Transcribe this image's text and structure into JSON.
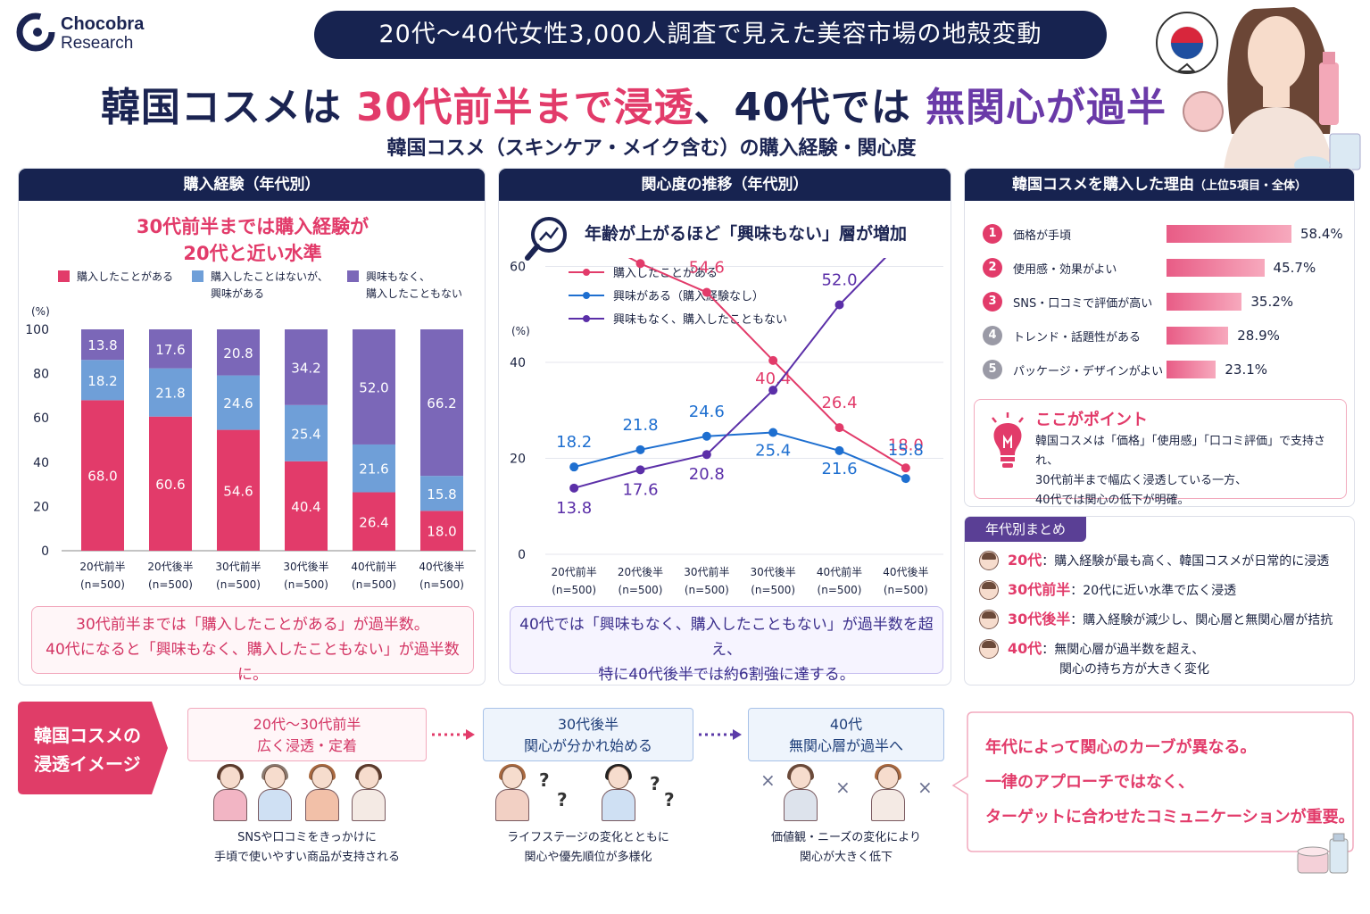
{
  "logo": {
    "name_line1": "Chocobra",
    "name_line2": "Research"
  },
  "banner": "20代〜40代女性3,000人調査で見えた美容市場の地殻変動",
  "headline": {
    "part1": "韓国コスメは ",
    "part2": "30代前半まで浸透",
    "part3": "、40代では ",
    "part4": "無関心が過半"
  },
  "subheadline": "韓国コスメ（スキンケア・メイク含む）の購入経験・関心度",
  "panel1": {
    "header": "購入経験（年代別）",
    "highlight_line1": "30代前半までは購入経験が",
    "highlight_line2": "20代と近い水準",
    "note_line1": "30代前半までは「購入したことがある」が過半数。",
    "note_line2": "40代になると「興味もなく、購入したこともない」が過半数に。"
  },
  "panel2": {
    "header": "関心度の推移（年代別）",
    "highlight": "年齢が上がるほど「興味もない」層が増加",
    "note_line1": "40代では「興味もなく、購入したこともない」が過半数を超え、",
    "note_line2": "特に40代後半では約6割強に達する。"
  },
  "panel3": {
    "header": "韓国コスメを購入した理由",
    "header_sub": "（上位5項目・全体）",
    "reasons": [
      {
        "rank": "1",
        "label": "価格が手頃",
        "value": 58.4,
        "display": "58.4%"
      },
      {
        "rank": "2",
        "label": "使用感・効果がよい",
        "value": 45.7,
        "display": "45.7%"
      },
      {
        "rank": "3",
        "label": "SNS・口コミで評価が高い",
        "value": 35.2,
        "display": "35.2%"
      },
      {
        "rank": "4",
        "label": "トレンド・話題性がある",
        "value": 28.9,
        "display": "28.9%"
      },
      {
        "rank": "5",
        "label": "パッケージ・デザインがよい",
        "value": 23.1,
        "display": "23.1%"
      }
    ],
    "point_title": "ここがポイント",
    "point_line1": "韓国コスメは「価格」「使用感」「口コミ評価」で支持され、",
    "point_line2": "30代前半まで幅広く浸透している一方、",
    "point_line3": "40代では関心の低下が明確。"
  },
  "summary": {
    "title": "年代別まとめ",
    "rows": [
      {
        "age": "20代",
        "text": "：購入経験が最も高く、韓国コスメが日常的に浸透",
        "text2": ""
      },
      {
        "age": "30代前半",
        "text": "：20代に近い水準で広く浸透",
        "text2": ""
      },
      {
        "age": "30代後半",
        "text": "：購入経験が減少し、関心層と無関心層が拮抗",
        "text2": ""
      },
      {
        "age": "40代",
        "text": "：無関心層が過半数を超え、",
        "text2": "関心の持ち方が大きく変化"
      }
    ]
  },
  "bottom": {
    "label_line1": "韓国コスメの",
    "label_line2": "浸透イメージ",
    "stage1_line1": "20代〜30代前半",
    "stage1_line2": "広く浸透・定着",
    "stage1_caption1": "SNSや口コミをきっかけに",
    "stage1_caption2": "手頃で使いやすい商品が支持される",
    "stage2_line1": "30代後半",
    "stage2_line2": "関心が分かれ始める",
    "stage2_caption1": "ライフステージの変化とともに",
    "stage2_caption2": "関心や優先順位が多様化",
    "stage3_line1": "40代",
    "stage3_line2": "無関心層が過半へ",
    "stage3_caption1": "価値観・ニーズの変化により",
    "stage3_caption2": "関心が大きく低下",
    "message_line1": "年代によって関心のカーブが異なる。",
    "message_line2": "一律のアプローチではなく、",
    "message_line3": "ターゲットに合わせたコミュニケーションが重要。"
  },
  "colors": {
    "pink": "#e23b6a",
    "blue": "#6f9fd8",
    "purple": "#7b67b8",
    "navy": "#172350",
    "line_blue": "#1e6fd0",
    "line_purple": "#5b2fa8"
  },
  "chart_data": [
    {
      "type": "bar",
      "stacked": true,
      "categories": [
        "20代前半",
        "20代後半",
        "30代前半",
        "30代後半",
        "40代前半",
        "40代後半"
      ],
      "sample_sizes": [
        "(n=500)",
        "(n=500)",
        "(n=500)",
        "(n=500)",
        "(n=500)",
        "(n=500)"
      ],
      "series": [
        {
          "name": "購入したことがある",
          "values": [
            68.0,
            60.6,
            54.6,
            40.4,
            26.4,
            18.0
          ]
        },
        {
          "name": "購入したことはないが、興味がある",
          "values": [
            18.2,
            21.8,
            24.6,
            25.4,
            21.6,
            15.8
          ]
        },
        {
          "name": "興味もなく、購入したこともない",
          "values": [
            13.8,
            17.6,
            20.8,
            34.2,
            52.0,
            66.2
          ]
        }
      ],
      "legend_labels": [
        [
          "購入したことがある"
        ],
        [
          "購入したことはないが、",
          "興味がある"
        ],
        [
          "興味もなく、",
          "購入したこともない"
        ]
      ],
      "ylabel": "(%)",
      "ylim": [
        0,
        100
      ],
      "yticks": [
        0,
        20,
        40,
        60,
        80,
        100
      ],
      "legend_position": "top"
    },
    {
      "type": "line",
      "categories": [
        "20代前半",
        "20代後半",
        "30代前半",
        "30代後半",
        "40代前半",
        "40代後半"
      ],
      "sample_sizes": [
        "(n=500)",
        "(n=500)",
        "(n=500)",
        "(n=500)",
        "(n=500)",
        "(n=500)"
      ],
      "series": [
        {
          "name": "購入したことがある",
          "values": [
            68.0,
            60.6,
            54.6,
            40.4,
            26.4,
            18.0
          ]
        },
        {
          "name": "興味がある（購入経験なし）",
          "values": [
            18.2,
            21.8,
            24.6,
            25.4,
            21.6,
            15.8
          ]
        },
        {
          "name": "興味もなく、購入したこともない",
          "values": [
            13.8,
            17.6,
            20.8,
            34.2,
            52.0,
            66.2
          ]
        }
      ],
      "ylabel": "(%)",
      "ylim": [
        0,
        80
      ],
      "yticks": [
        0,
        20,
        40,
        60,
        80
      ],
      "grid": true,
      "legend_position": "top"
    }
  ]
}
